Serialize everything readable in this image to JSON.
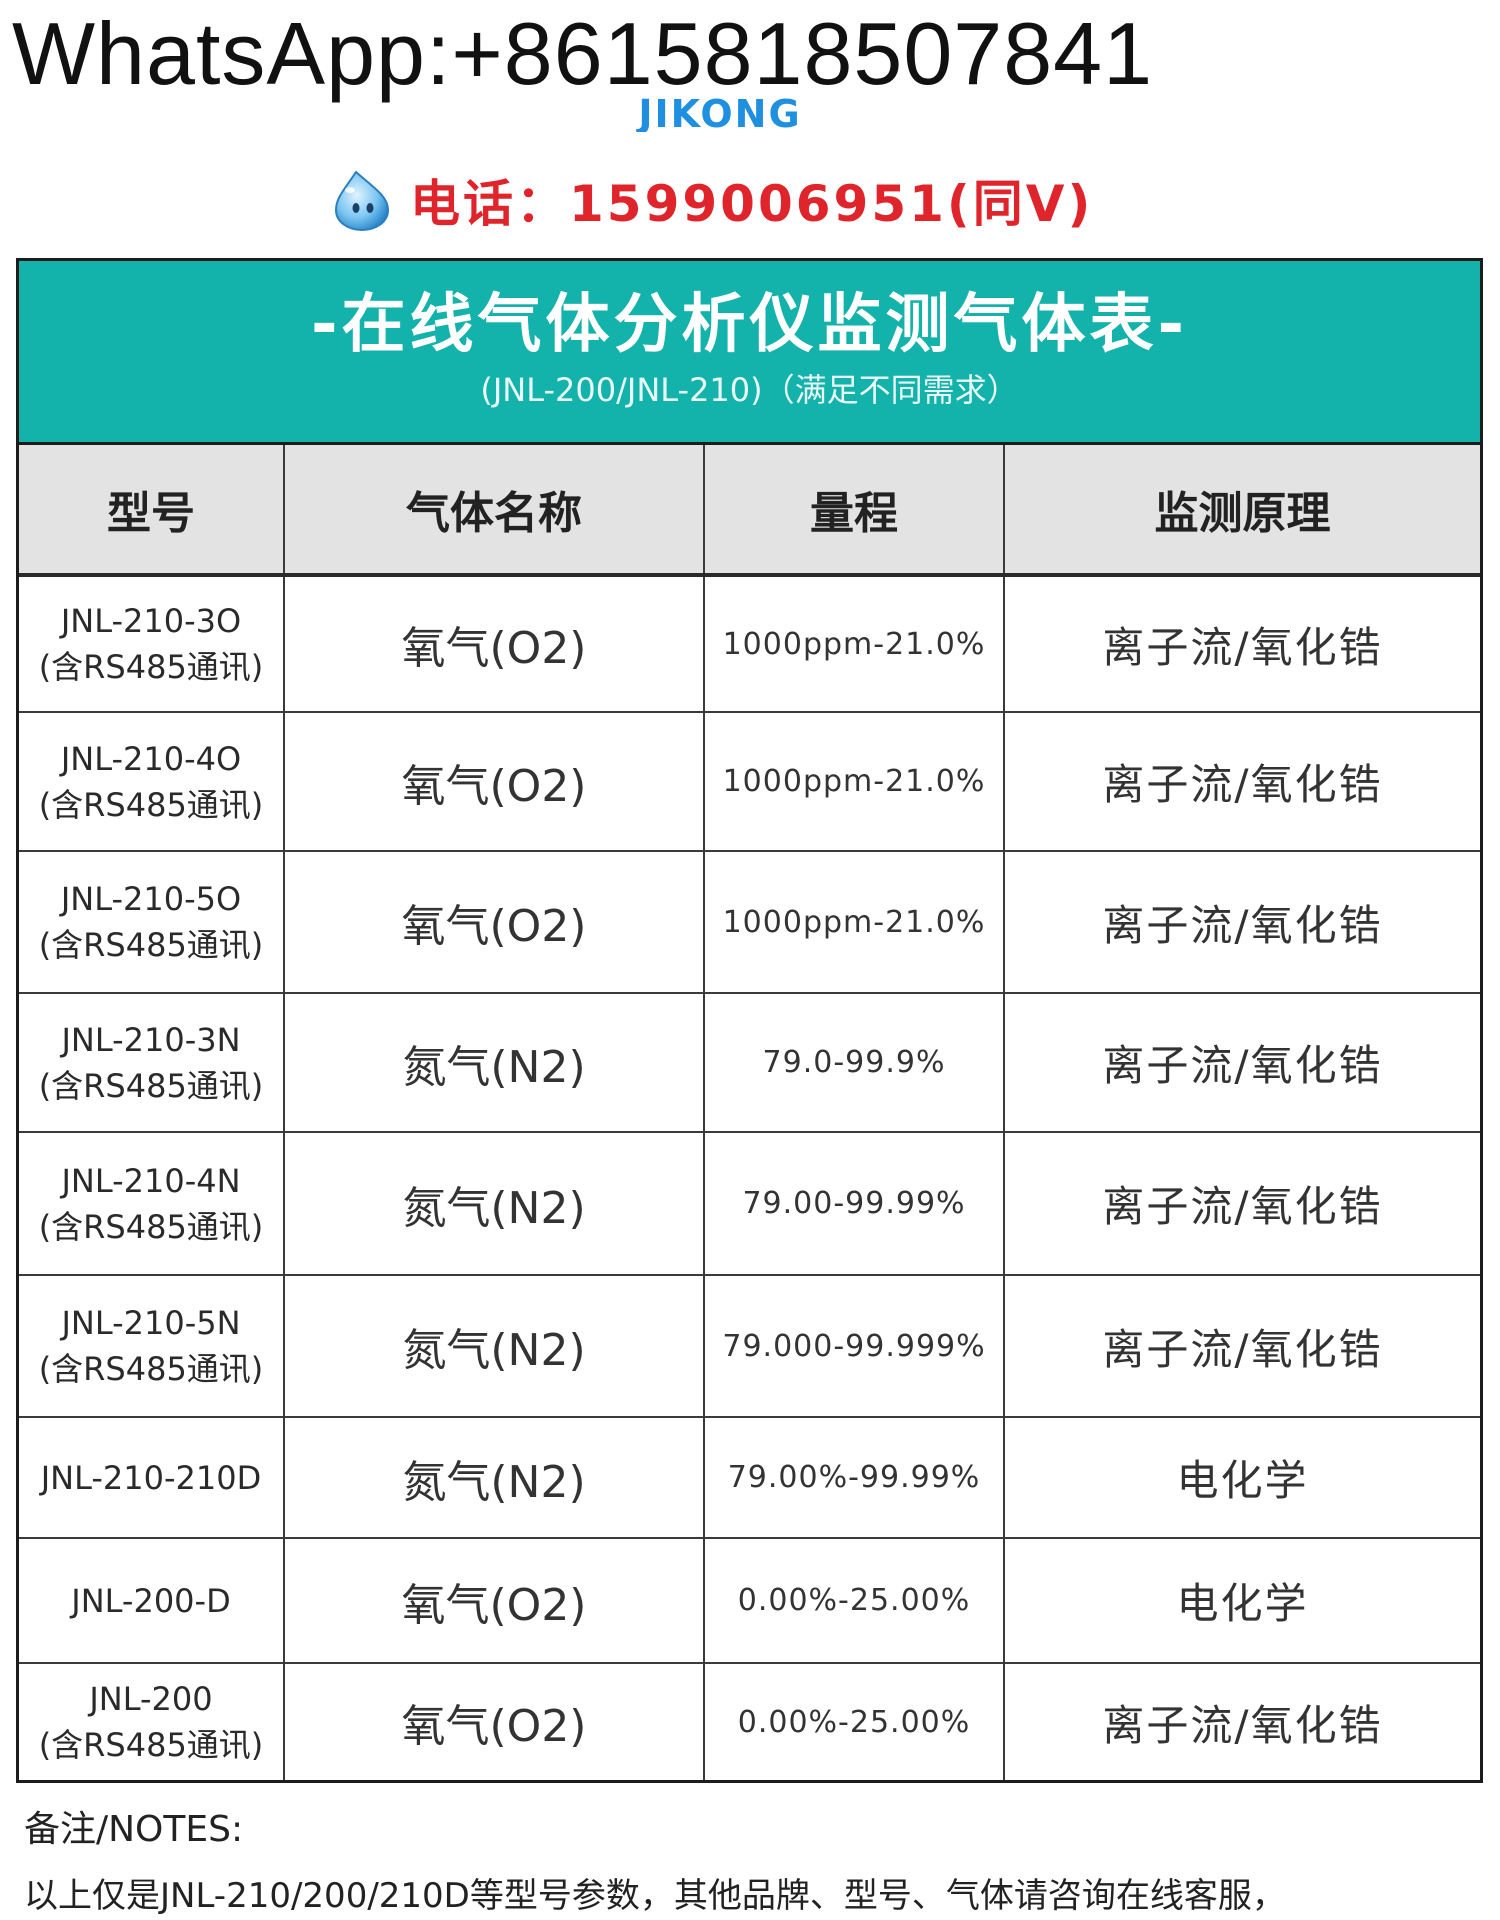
{
  "header": {
    "whatsapp": "WhatsApp:+8615818507841",
    "brand": "JIKONG",
    "phone": "电话：1599006951(同V)",
    "icon": "water-drop-mascot-icon"
  },
  "table": {
    "title": "-在线气体分析仪监测气体表-",
    "subtitle": "(JNL-200/JNL-210)（满足不同需求）",
    "columns": [
      "型号",
      "气体名称",
      "量程",
      "监测原理"
    ],
    "rows": [
      {
        "model_line1": "JNL-210-3O",
        "model_line2": "(含RS485通讯)",
        "gas": "氧气(O2)",
        "range": "1000ppm-21.0%",
        "principle": "离子流/氧化锆"
      },
      {
        "model_line1": "JNL-210-4O",
        "model_line2": "(含RS485通讯)",
        "gas": "氧气(O2)",
        "range": "1000ppm-21.0%",
        "principle": "离子流/氧化锆"
      },
      {
        "model_line1": "JNL-210-5O",
        "model_line2": "(含RS485通讯)",
        "gas": "氧气(O2)",
        "range": "1000ppm-21.0%",
        "principle": "离子流/氧化锆"
      },
      {
        "model_line1": "JNL-210-3N",
        "model_line2": "(含RS485通讯)",
        "gas": "氮气(N2)",
        "range": "79.0-99.9%",
        "principle": "离子流/氧化锆"
      },
      {
        "model_line1": "JNL-210-4N",
        "model_line2": "(含RS485通讯)",
        "gas": "氮气(N2)",
        "range": "79.00-99.99%",
        "principle": "离子流/氧化锆"
      },
      {
        "model_line1": "JNL-210-5N",
        "model_line2": "(含RS485通讯)",
        "gas": "氮气(N2)",
        "range": "79.000-99.999%",
        "principle": "离子流/氧化锆"
      },
      {
        "model_line1": "JNL-210-210D",
        "model_line2": "",
        "gas": "氮气(N2)",
        "range": "79.00%-99.99%",
        "principle": "电化学"
      },
      {
        "model_line1": "JNL-200-D",
        "model_line2": "",
        "gas": "氧气(O2)",
        "range": "0.00%-25.00%",
        "principle": "电化学"
      },
      {
        "model_line1": "JNL-200",
        "model_line2": "(含RS485通讯)",
        "gas": "氧气(O2)",
        "range": "0.00%-25.00%",
        "principle": "离子流/氧化锆"
      }
    ]
  },
  "notes": {
    "heading": "备注/NOTES:",
    "text": "以上仅是JNL-210/200/210D等型号参数，其他品牌、型号、气体请咨询在线客服，"
  },
  "colors": {
    "title_band": "#13b3ac",
    "phone": "#e0242b",
    "brand": "#1f8fe0",
    "header_row": "#e3e3e3"
  }
}
